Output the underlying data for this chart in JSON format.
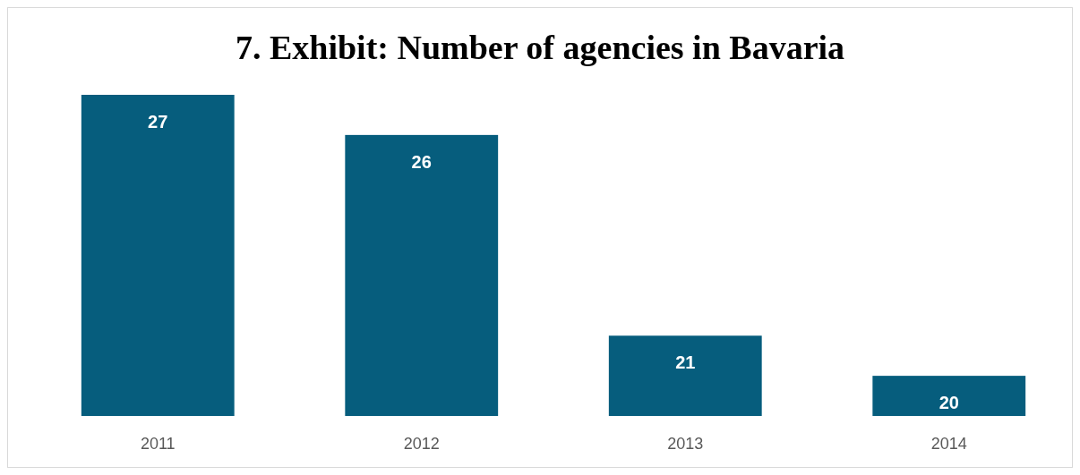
{
  "chart_data": {
    "type": "bar",
    "title": "7. Exhibit: Number of agencies in Bavaria",
    "categories": [
      "2011",
      "2012",
      "2013",
      "2014"
    ],
    "values": [
      27,
      26,
      21,
      20
    ],
    "color": "#065d7d",
    "ylim": [
      19,
      27
    ],
    "data_labels": true
  }
}
